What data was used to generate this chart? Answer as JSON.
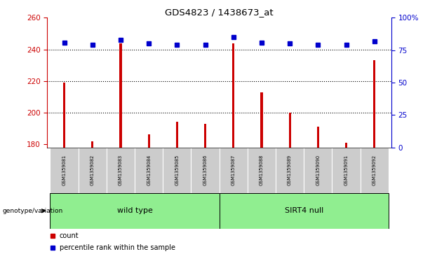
{
  "title": "GDS4823 / 1438673_at",
  "samples": [
    "GSM1359081",
    "GSM1359082",
    "GSM1359083",
    "GSM1359084",
    "GSM1359085",
    "GSM1359086",
    "GSM1359087",
    "GSM1359088",
    "GSM1359089",
    "GSM1359090",
    "GSM1359091",
    "GSM1359092"
  ],
  "counts": [
    219,
    182,
    244,
    186,
    194,
    193,
    244,
    213,
    200,
    191,
    181,
    233
  ],
  "percentile_ranks": [
    81,
    79,
    83,
    80,
    79,
    79,
    85,
    81,
    80,
    79,
    79,
    82
  ],
  "ymin": 178,
  "ymax": 260,
  "yticks": [
    180,
    200,
    220,
    240,
    260
  ],
  "yright_ticks": [
    0,
    25,
    50,
    75,
    100
  ],
  "groups": [
    {
      "label": "wild type",
      "start": 0,
      "end": 6,
      "color": "#90EE90"
    },
    {
      "label": "SIRT4 null",
      "start": 6,
      "end": 12,
      "color": "#90EE90"
    }
  ],
  "group_row_label": "genotype/variation",
  "bar_color": "#CC0000",
  "dot_color": "#0000CC",
  "bg_color": "#FFFFFF",
  "left_axis_color": "#CC0000",
  "right_axis_color": "#0000CC",
  "legend_count_label": "count",
  "legend_pct_label": "percentile rank within the sample",
  "sample_box_color": "#CCCCCC",
  "bar_width": 0.08
}
